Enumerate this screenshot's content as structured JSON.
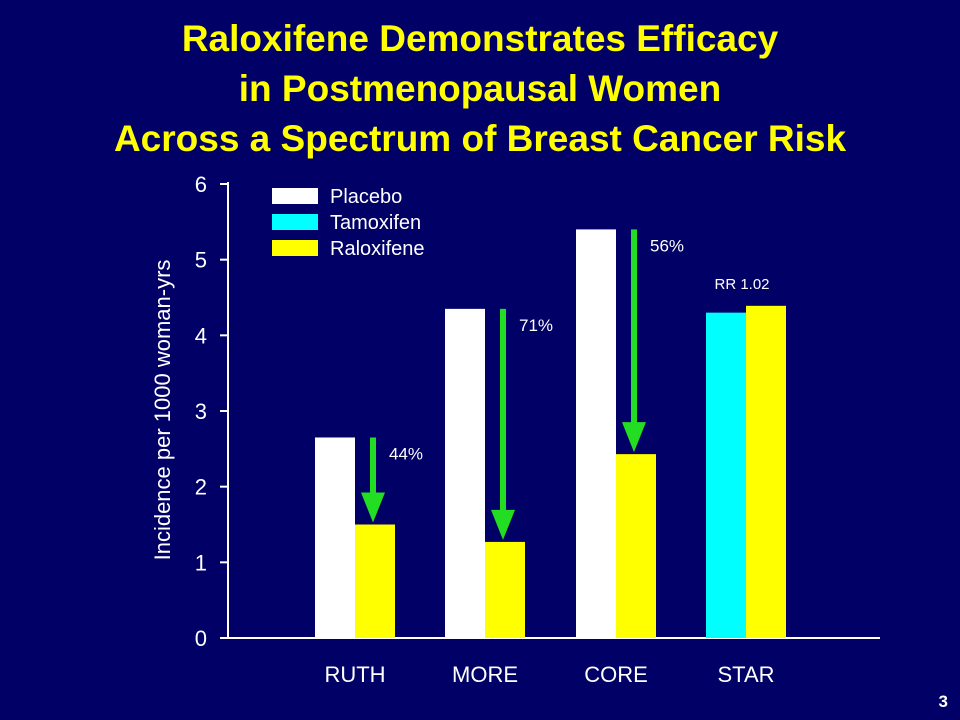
{
  "title": {
    "line1": "Raloxifene Demonstrates Efficacy",
    "line2": "in Postmenopausal Women",
    "line3": "Across a Spectrum of Breast Cancer Risk"
  },
  "slide_number": "3",
  "colors": {
    "background": "#000066",
    "title": "#FFFF00",
    "placebo": "#FFFFFF",
    "tamoxifen": "#00FFFF",
    "raloxifene": "#FFFF00",
    "arrow": "#22DD22"
  },
  "chart_data": {
    "type": "bar",
    "title": "",
    "ylabel": "Incidence per 1000 woman-yrs",
    "xlabel": "",
    "ylim": [
      0,
      6
    ],
    "yticks": [
      0,
      1,
      2,
      3,
      4,
      5,
      6
    ],
    "grid": false,
    "legend_position": "top-left",
    "categories": [
      "RUTH",
      "MORE",
      "CORE",
      "STAR"
    ],
    "series": [
      {
        "name": "Placebo",
        "color": "#FFFFFF",
        "values": [
          2.65,
          4.35,
          5.4,
          null
        ]
      },
      {
        "name": "Tamoxifen",
        "color": "#00FFFF",
        "values": [
          null,
          null,
          null,
          4.3
        ]
      },
      {
        "name": "Raloxifene",
        "color": "#FFFF00",
        "values": [
          1.5,
          1.27,
          2.43,
          4.39
        ]
      }
    ],
    "annotations": [
      {
        "category": "RUTH",
        "text": "44%",
        "type": "reduction-arrow",
        "from": 2.65,
        "to": 1.5
      },
      {
        "category": "MORE",
        "text": "71%",
        "type": "reduction-arrow",
        "from": 4.35,
        "to": 1.27
      },
      {
        "category": "CORE",
        "text": "56%",
        "type": "reduction-arrow",
        "from": 5.4,
        "to": 2.43
      },
      {
        "category": "STAR",
        "text": "RR 1.02",
        "type": "label"
      }
    ]
  }
}
